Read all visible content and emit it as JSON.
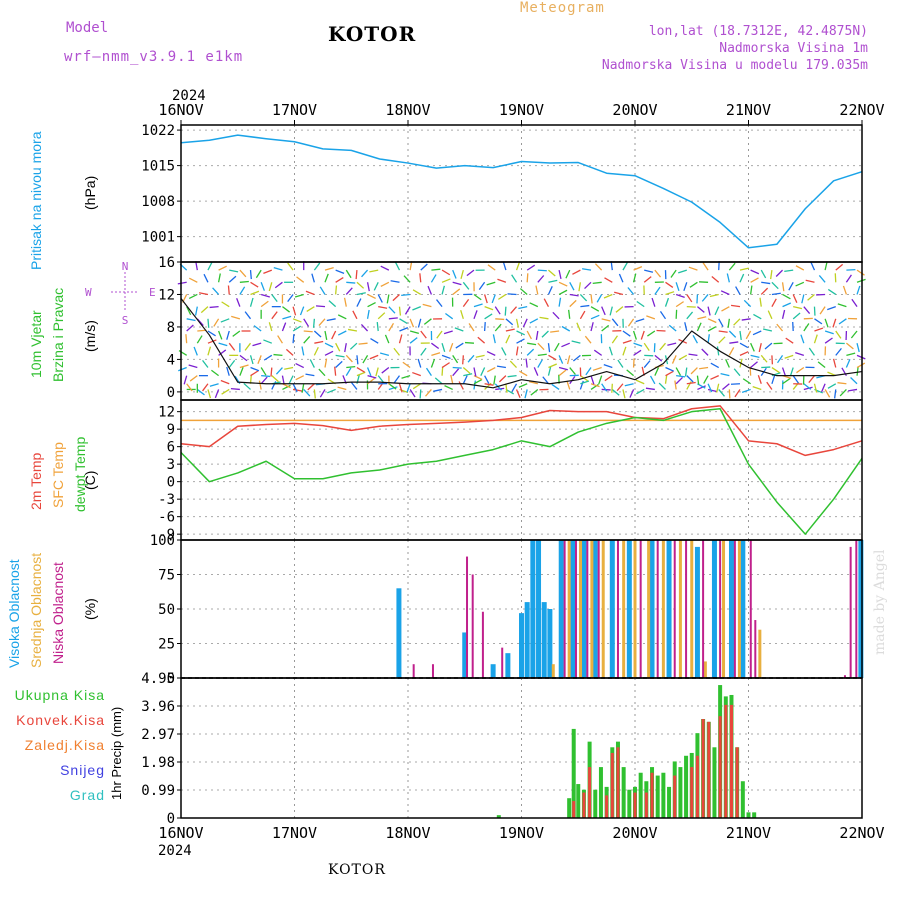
{
  "header": {
    "model_label": "Model",
    "model_name": "wrf–nmm_v3.9.1 e1km",
    "title": "KOTOR",
    "chart_type": "Meteogram",
    "lonlat": "lon,lat (18.7312E, 42.4875N)",
    "elevation": "Nadmorska Visina 1m",
    "model_elevation": "Nadmorska Visina u modelu 179.035m",
    "credit": "made by Angel",
    "footer_title": "KOTOR"
  },
  "colors": {
    "pressure": "#1aa3e8",
    "temp2m": "#e8463c",
    "sfc_temp": "#f0a23a",
    "dewpoint": "#30c030",
    "high_cloud": "#1aa3e8",
    "mid_cloud": "#e8b040",
    "low_cloud": "#c0208c",
    "total_precip": "#30c030",
    "conv_precip": "#e8463c",
    "grid_precip": "#f08030",
    "snow": "#4040e0",
    "graupel": "#30c0c0",
    "purple_text": "#b050d0",
    "orange_text": "#e8b060"
  },
  "axes": {
    "year": "2024",
    "dates": [
      "16NOV",
      "17NOV",
      "18NOV",
      "19NOV",
      "20NOV",
      "21NOV",
      "22NOV"
    ]
  },
  "chart_data": [
    {
      "type": "line",
      "panel": "pressure",
      "ylabel": "(hPa)",
      "side_labels": [
        "Pritisak na nivou mora"
      ],
      "yticks": [
        "1001",
        "1008",
        "1015",
        "1022"
      ],
      "ylim": [
        996,
        1023
      ],
      "x": [
        0,
        0.25,
        0.5,
        0.75,
        1.0,
        1.25,
        1.5,
        1.75,
        2.0,
        2.25,
        2.5,
        2.75,
        3.0,
        3.25,
        3.5,
        3.75,
        4.0,
        4.25,
        4.5,
        4.75,
        5.0,
        5.25,
        5.5,
        5.75,
        6.0
      ],
      "series": [
        {
          "values": [
            1019.5,
            1020.0,
            1021.0,
            1020.3,
            1019.7,
            1018.3,
            1018.0,
            1016.3,
            1015.5,
            1014.5,
            1015.0,
            1014.6,
            1015.8,
            1015.5,
            1015.6,
            1013.5,
            1013.0,
            1010.5,
            1007.8,
            1003.8,
            998.8,
            999.5,
            1006.5,
            1012.0,
            1013.8
          ]
        }
      ]
    },
    {
      "type": "line",
      "panel": "wind",
      "ylabel": "(m/s)",
      "side_labels": [
        "10m Vjetar",
        "Brzina i Pravac"
      ],
      "compass_labels": [
        "N",
        "W",
        "E",
        "S"
      ],
      "yticks": [
        "0",
        "4",
        "8",
        "12",
        "16"
      ],
      "ylim": [
        -1,
        16
      ],
      "x": [
        0,
        0.25,
        0.5,
        0.75,
        1.0,
        1.25,
        1.5,
        1.75,
        2.0,
        2.25,
        2.5,
        2.75,
        3.0,
        3.25,
        3.5,
        3.75,
        4.0,
        4.25,
        4.5,
        4.75,
        5.0,
        5.25,
        5.5,
        5.75,
        6.0
      ],
      "series": [
        {
          "values": [
            11.5,
            7.0,
            1.2,
            1.0,
            1.0,
            1.0,
            1.2,
            1.2,
            1.0,
            1.0,
            1.0,
            0.5,
            1.5,
            1.0,
            1.5,
            2.5,
            1.5,
            3.5,
            7.5,
            5.0,
            3.0,
            2.0,
            2.0,
            2.0,
            2.5
          ]
        }
      ]
    },
    {
      "type": "line",
      "panel": "temperature",
      "ylabel": "(C)",
      "side_labels": [
        "2m Temp",
        "SFC Temp",
        "dewpt Temp"
      ],
      "yticks": [
        "-9",
        "-6",
        "-3",
        "0",
        "3",
        "6",
        "9",
        "12"
      ],
      "ylim": [
        -10,
        14
      ],
      "x": [
        0,
        0.25,
        0.5,
        0.75,
        1.0,
        1.25,
        1.5,
        1.75,
        2.0,
        2.25,
        2.5,
        2.75,
        3.0,
        3.25,
        3.5,
        3.75,
        4.0,
        4.25,
        4.5,
        4.75,
        5.0,
        5.25,
        5.5,
        5.75,
        6.0
      ],
      "series": [
        {
          "name": "2m Temp",
          "values": [
            6.5,
            6.0,
            9.5,
            9.8,
            10.0,
            9.6,
            8.8,
            9.5,
            9.8,
            10.0,
            10.2,
            10.5,
            11.0,
            12.2,
            12.0,
            12.0,
            11.0,
            10.8,
            12.5,
            13.0,
            7.0,
            6.5,
            4.5,
            5.5,
            7.0
          ]
        },
        {
          "name": "SFC Temp",
          "values": [
            10.5,
            10.5,
            10.5,
            10.5,
            10.5,
            10.5,
            10.5,
            10.5,
            10.5,
            10.5,
            10.5,
            10.5,
            10.5,
            10.5,
            10.5,
            10.5,
            10.5,
            10.5,
            10.5,
            10.5,
            10.5,
            10.5,
            10.5,
            10.5,
            10.5
          ]
        },
        {
          "name": "dewpt Temp",
          "values": [
            5.0,
            0.0,
            1.5,
            3.5,
            0.5,
            0.5,
            1.5,
            2.0,
            3.0,
            3.5,
            4.5,
            5.5,
            7.0,
            6.0,
            8.5,
            10.0,
            11.0,
            10.5,
            12.0,
            12.5,
            3.0,
            -3.5,
            -9.0,
            -3.0,
            4.0
          ]
        }
      ]
    },
    {
      "type": "bar",
      "panel": "clouds",
      "ylabel": "(%)",
      "side_labels": [
        "Visoka Oblacnost",
        "Srednja Oblacnost",
        "Niska Oblacnost"
      ],
      "yticks": [
        "0",
        "25",
        "50",
        "75",
        "100"
      ],
      "ylim": [
        0,
        100
      ],
      "series": [
        {
          "name": "Visoka Oblacnost",
          "x": [
            1.92,
            2.5,
            2.75,
            2.88,
            3.0,
            3.05,
            3.1,
            3.15,
            3.2,
            3.25,
            3.35,
            3.45,
            3.55,
            3.65,
            3.8,
            3.95,
            4.15,
            4.3,
            4.55,
            4.7,
            4.85,
            4.95,
            5.99
          ],
          "values": [
            65,
            33,
            10,
            18,
            47,
            55,
            100,
            100,
            55,
            50,
            100,
            100,
            100,
            100,
            100,
            100,
            100,
            100,
            95,
            100,
            100,
            100,
            100
          ]
        },
        {
          "name": "Srednja Oblacnost",
          "x": [
            3.28,
            3.42,
            3.52,
            3.62,
            3.72,
            3.9,
            4.0,
            4.12,
            4.25,
            4.4,
            4.5,
            4.62,
            4.78,
            4.92,
            5.1
          ],
          "values": [
            10,
            100,
            100,
            100,
            100,
            100,
            100,
            100,
            100,
            100,
            100,
            12,
            100,
            100,
            35
          ]
        },
        {
          "name": "Niska Oblacnost",
          "x": [
            2.05,
            2.22,
            2.52,
            2.57,
            2.66,
            2.83,
            3.38,
            3.48,
            3.58,
            3.68,
            3.85,
            4.05,
            4.2,
            4.35,
            4.45,
            4.6,
            4.75,
            4.88,
            5.02,
            5.06,
            5.85,
            5.9,
            5.95
          ],
          "values": [
            10,
            10,
            88,
            75,
            48,
            22,
            100,
            100,
            100,
            100,
            100,
            100,
            100,
            100,
            100,
            100,
            100,
            100,
            100,
            42,
            2,
            95,
            100
          ]
        }
      ]
    },
    {
      "type": "bar",
      "panel": "precipitation",
      "ylabel": "1hr Precip (mm)",
      "side_labels": [
        "Ukupna Kisa",
        "Konvek.Kisa",
        "Zaledj.Kisa",
        "Snijeg",
        "Grad"
      ],
      "yticks": [
        "0",
        "0.99",
        "1.98",
        "2.97",
        "3.96",
        "4.95"
      ],
      "ylim": [
        0,
        4.95
      ],
      "series": [
        {
          "name": "Ukupna Kisa",
          "x": [
            2.8,
            3.42,
            3.46,
            3.5,
            3.55,
            3.6,
            3.65,
            3.7,
            3.75,
            3.8,
            3.85,
            3.9,
            3.95,
            4.0,
            4.05,
            4.1,
            4.15,
            4.2,
            4.25,
            4.3,
            4.35,
            4.4,
            4.45,
            4.5,
            4.55,
            4.6,
            4.65,
            4.7,
            4.75,
            4.8,
            4.85,
            4.9,
            4.95,
            5.0,
            5.05
          ],
          "values": [
            0.1,
            0.7,
            3.15,
            1.2,
            1.0,
            2.7,
            1.0,
            1.8,
            1.1,
            2.5,
            2.7,
            1.8,
            1.0,
            1.1,
            1.6,
            1.3,
            1.8,
            1.5,
            1.6,
            1.1,
            2.0,
            1.8,
            2.2,
            2.3,
            3.0,
            3.5,
            3.4,
            2.5,
            4.7,
            4.3,
            4.35,
            2.5,
            1.3,
            0.2,
            0.2
          ]
        },
        {
          "name": "Konvek.Kisa",
          "x": [
            3.46,
            3.55,
            3.6,
            3.75,
            3.8,
            3.85,
            4.0,
            4.1,
            4.15,
            4.35,
            4.5,
            4.55,
            4.6,
            4.65,
            4.75,
            4.8,
            4.85,
            4.9
          ],
          "values": [
            0.6,
            0.9,
            1.8,
            0.8,
            2.3,
            2.5,
            0.9,
            0.9,
            1.6,
            1.5,
            1.8,
            2.2,
            3.5,
            3.4,
            3.6,
            4.0,
            4.0,
            2.5
          ]
        }
      ]
    }
  ]
}
